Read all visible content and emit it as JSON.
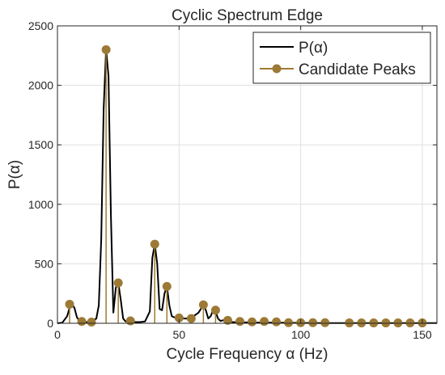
{
  "chart_data": {
    "type": "line",
    "title": "Cyclic Spectrum Edge",
    "xlabel": "Cycle Frequency α (Hz)",
    "ylabel": "P(α)",
    "xlim": [
      0,
      156
    ],
    "ylim": [
      0,
      2500
    ],
    "xticks": [
      0,
      50,
      100,
      150
    ],
    "yticks": [
      0,
      500,
      1000,
      1500,
      2000,
      2500
    ],
    "grid": true,
    "legend_position": "top-right",
    "series": [
      {
        "name": "P(α)",
        "style": "line",
        "color": "#000000",
        "x": [
          0,
          2,
          4,
          5,
          6,
          7,
          8,
          9,
          10,
          12,
          14,
          16,
          17,
          18,
          19,
          20,
          21,
          22,
          23,
          24,
          25,
          26,
          27,
          28,
          30,
          32,
          34,
          36,
          38,
          39,
          40,
          41,
          42,
          43,
          44,
          45,
          46,
          47,
          48,
          50,
          52,
          54,
          56,
          58,
          60,
          61,
          62,
          63,
          64,
          65,
          66,
          67,
          68,
          69,
          70,
          72,
          75,
          80,
          85,
          90,
          95,
          100,
          110,
          120,
          130,
          140,
          150,
          156
        ],
        "y": [
          0,
          5,
          60,
          130,
          160,
          130,
          50,
          20,
          10,
          10,
          15,
          40,
          150,
          700,
          1800,
          2300,
          2080,
          900,
          90,
          300,
          340,
          200,
          40,
          15,
          20,
          10,
          10,
          15,
          100,
          550,
          665,
          500,
          120,
          110,
          250,
          310,
          150,
          60,
          50,
          45,
          40,
          40,
          60,
          90,
          155,
          110,
          40,
          60,
          110,
          100,
          40,
          20,
          25,
          20,
          15,
          10,
          8,
          6,
          5,
          5,
          4,
          3,
          2,
          2,
          2,
          2,
          2,
          2
        ]
      },
      {
        "name": "Candidate Peaks",
        "style": "stem",
        "color": "#9f7b30",
        "marker_color": "#9c7a36",
        "x": [
          5,
          10,
          14,
          20,
          25,
          30,
          40,
          45,
          50,
          55,
          60,
          65,
          70,
          75,
          80,
          85,
          90,
          95,
          100,
          105,
          110,
          120,
          125,
          130,
          135,
          140,
          145,
          150
        ],
        "y": [
          160,
          15,
          10,
          2300,
          340,
          20,
          665,
          310,
          45,
          40,
          155,
          110,
          25,
          15,
          12,
          15,
          12,
          5,
          5,
          5,
          5,
          3,
          3,
          3,
          3,
          3,
          3,
          3
        ]
      }
    ]
  }
}
